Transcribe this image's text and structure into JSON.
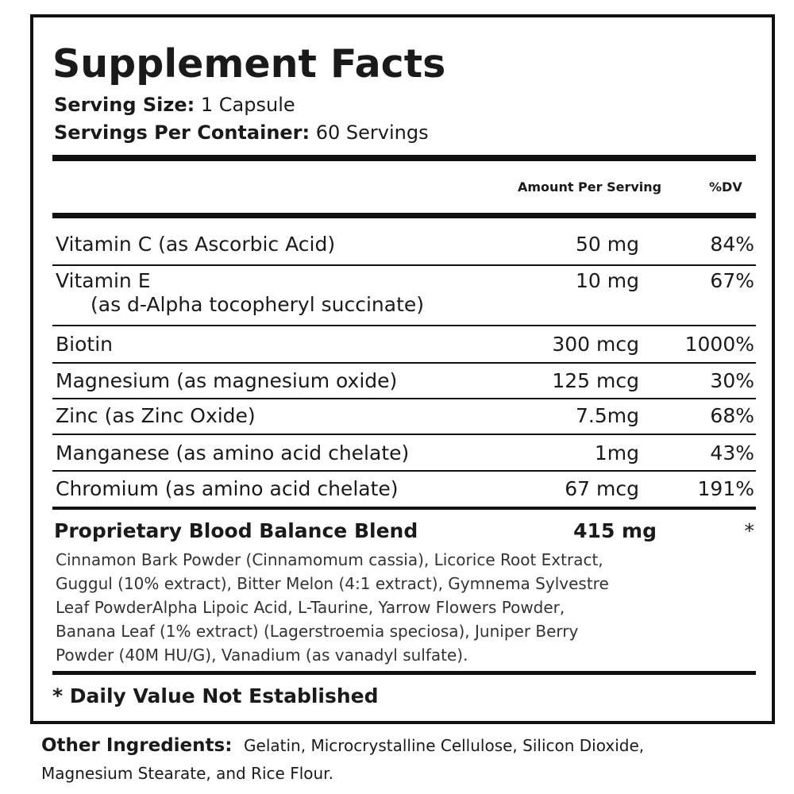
{
  "title": "Supplement Facts",
  "serving_size": {
    "label": "Serving Size:",
    "value": "1 Capsule"
  },
  "servings_per_container": {
    "label": "Servings Per Container:",
    "value": "60 Servings"
  },
  "table": {
    "headers": [
      "Amount Per Serving",
      "%DV"
    ],
    "rows": [
      {
        "name": "Vitamin C (as Ascorbic Acid)",
        "amount": "50 mg",
        "dv": "84%"
      },
      {
        "name": "Vitamin E",
        "sub": "(as d-Alpha tocopheryl succinate)",
        "amount": "10 mg",
        "dv": "67%"
      },
      {
        "name": "Biotin",
        "amount": "300 mcg",
        "dv": "1000%"
      },
      {
        "name": "Magnesium (as magnesium oxide)",
        "amount": "125 mcg",
        "dv": "30%"
      },
      {
        "name": "Zinc (as Zinc Oxide)",
        "amount": "7.5mg",
        "dv": "68%"
      },
      {
        "name": "Manganese (as amino acid chelate)",
        "amount": "1mg",
        "dv": "43%"
      },
      {
        "name": "Chromium (as amino acid chelate)",
        "amount": "67 mcg",
        "dv": "191%"
      }
    ]
  },
  "blend": {
    "name": "Proprietary Blood Balance Blend",
    "amount": "415 mg",
    "dv": "*",
    "ingredients": [
      "Cinnamon Bark Powder (Cinnamomum cassia), Licorice Root Extract,",
      "Guggul (10% extract), Bitter Melon (4:1 extract), Gymnema Sylvestre",
      "Leaf PowderAlpha Lipoic Acid, L-Taurine, Yarrow Flowers Powder,",
      "Banana Leaf (1% extract) (Lagerstroemia speciosa), Juniper Berry",
      "Powder (40M HU/G), Vanadium (as vanadyl sulfate)."
    ]
  },
  "footnote": "* Daily Value Not Established",
  "other_ingredients": {
    "label": "Other Ingredients:",
    "lines": [
      "Gelatin, Microcrystalline Cellulose, Silicon Dioxide,",
      "Magnesium Stearate, and Rice Flour."
    ]
  }
}
